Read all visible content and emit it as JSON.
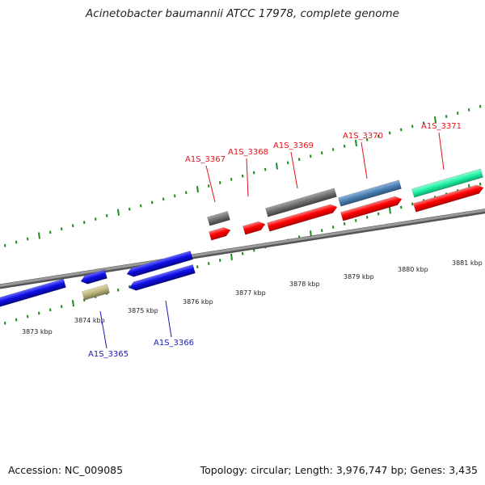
{
  "title": "Acinetobacter baumannii ATCC 17978, complete genome",
  "accession": "Accession: NC_009085",
  "stats": "Topology: circular; Length: 3,976,747 bp; Genes: 3,435",
  "kbp_labels": [
    "3873 kbp",
    "3874 kbp",
    "3875 kbp",
    "3876 kbp",
    "3877 kbp",
    "3878 kbp",
    "3879 kbp",
    "3880 kbp",
    "3881 kbp"
  ],
  "forward_genes": [
    "A1S_3367",
    "A1S_3368",
    "A1S_3369",
    "A1S_3370",
    "A1S_3371"
  ],
  "reverse_genes": [
    "A1S_3365",
    "A1S_3366"
  ],
  "colors": {
    "forward_label": "#e0141e",
    "reverse_label": "#1a1ab8",
    "backbone": "#7a7a7a",
    "ticks": "#1c8a1c",
    "forward_cds": "#ff0000",
    "reverse_cds": "#0f0fe6",
    "gray_gene": "#6e6e6e",
    "steel_gene": "#4a7fb2",
    "teal_gene": "#1ef0a0",
    "olive_gene": "#b9b27a"
  }
}
